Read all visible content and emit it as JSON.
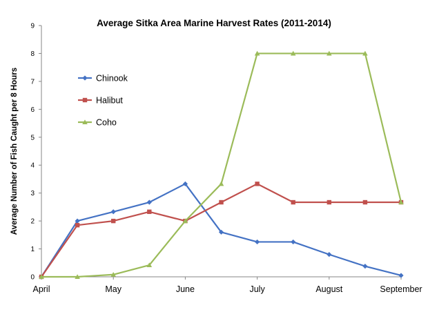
{
  "chart_data": {
    "type": "line",
    "title": "Average Sitka Area Marine Harvest Rates (2011-2014)",
    "ylabel": "Average Number of Fish  Caught per 8 Hours",
    "xlabel": "",
    "ylim": [
      0,
      9
    ],
    "yticks": [
      0,
      1,
      2,
      3,
      4,
      5,
      6,
      7,
      8,
      9
    ],
    "x_tick_labels": [
      "April",
      "May",
      "June",
      "July",
      "August",
      "September"
    ],
    "x_tick_positions": [
      0,
      2,
      4,
      6,
      8,
      10
    ],
    "xlim": [
      0,
      10
    ],
    "x": [
      0,
      1,
      2,
      3,
      4,
      5,
      6,
      7,
      8,
      9,
      10
    ],
    "grid": false,
    "legend_position": "left",
    "series": [
      {
        "name": "Chinook",
        "color": "#4472C4",
        "marker": "diamond",
        "values": [
          0,
          2.0,
          2.33,
          2.67,
          3.33,
          1.6,
          1.25,
          1.25,
          0.8,
          0.38,
          0.05
        ]
      },
      {
        "name": "Halibut",
        "color": "#C0504D",
        "marker": "square",
        "values": [
          0,
          1.85,
          2.0,
          2.33,
          2.0,
          2.67,
          3.33,
          2.67,
          2.67,
          2.67,
          2.67
        ]
      },
      {
        "name": "Coho",
        "color": "#9BBB59",
        "marker": "triangle",
        "values": [
          0,
          0,
          0.08,
          0.42,
          2.0,
          3.33,
          8.0,
          8.0,
          8.0,
          8.0,
          2.67
        ]
      }
    ]
  }
}
